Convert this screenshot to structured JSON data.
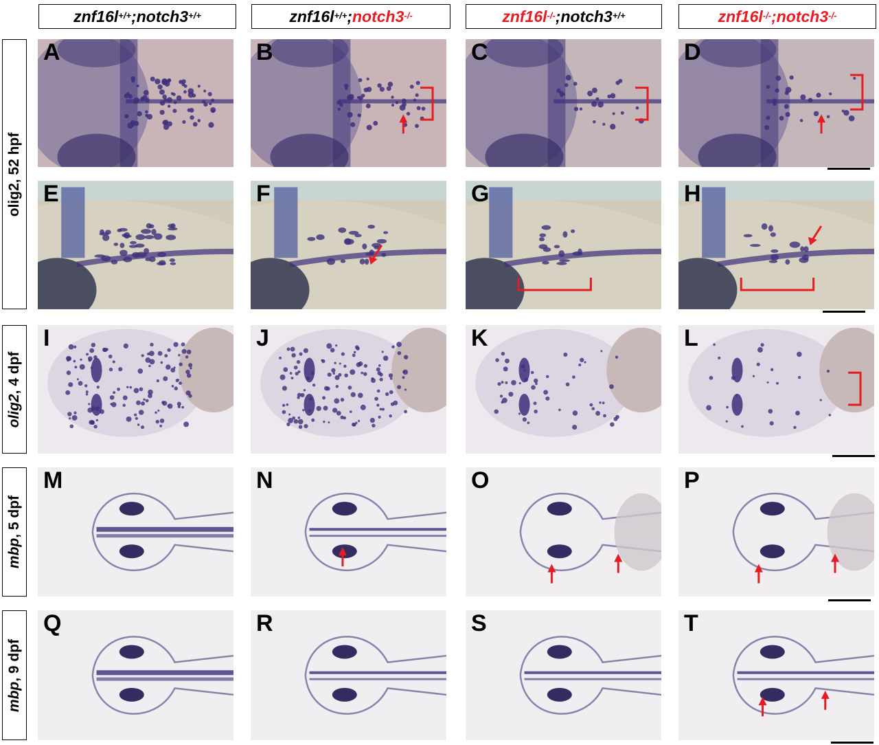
{
  "columns": [
    {
      "parts": [
        {
          "t": "znf16l",
          "c": "blk"
        },
        {
          "t": "+/+",
          "c": "blk",
          "sup": true
        },
        {
          "t": ";notch3",
          "c": "blk"
        },
        {
          "t": "+/+",
          "c": "blk",
          "sup": true
        }
      ]
    },
    {
      "parts": [
        {
          "t": "znf16l",
          "c": "blk"
        },
        {
          "t": "+/+",
          "c": "blk",
          "sup": true
        },
        {
          "t": ";",
          "c": "blk"
        },
        {
          "t": "notch3",
          "c": "red"
        },
        {
          "t": "-/-",
          "c": "red",
          "sup": true
        }
      ]
    },
    {
      "parts": [
        {
          "t": "znf16l",
          "c": "red"
        },
        {
          "t": "-/-",
          "c": "red",
          "sup": true
        },
        {
          "t": ";notch3",
          "c": "blk"
        },
        {
          "t": "+/+",
          "c": "blk",
          "sup": true
        }
      ]
    },
    {
      "parts": [
        {
          "t": "znf16l",
          "c": "red"
        },
        {
          "t": "-/-",
          "c": "red",
          "sup": true
        },
        {
          "t": ";notch3",
          "c": "red"
        },
        {
          "t": "-/-",
          "c": "red",
          "sup": true
        }
      ]
    }
  ],
  "rows": [
    {
      "label": "olig2, 52 hpf",
      "italic_part": ""
    },
    {
      "label": "olig2, 4 dpf",
      "italic_part": "olig2"
    },
    {
      "label": "mbp, 5 dpf",
      "italic_part": "mbp"
    },
    {
      "label": "mbp, 9 dpf",
      "italic_part": "mbp"
    }
  ],
  "panel_letters": [
    "A",
    "B",
    "C",
    "D",
    "E",
    "F",
    "G",
    "H",
    "I",
    "J",
    "K",
    "L",
    "M",
    "N",
    "O",
    "P",
    "Q",
    "R",
    "S",
    "T"
  ],
  "colors": {
    "stain": "#3d2f7a",
    "annotation": "#e41c23",
    "background_pink": "#c9b6b8",
    "background_light": "#ece8ea"
  }
}
